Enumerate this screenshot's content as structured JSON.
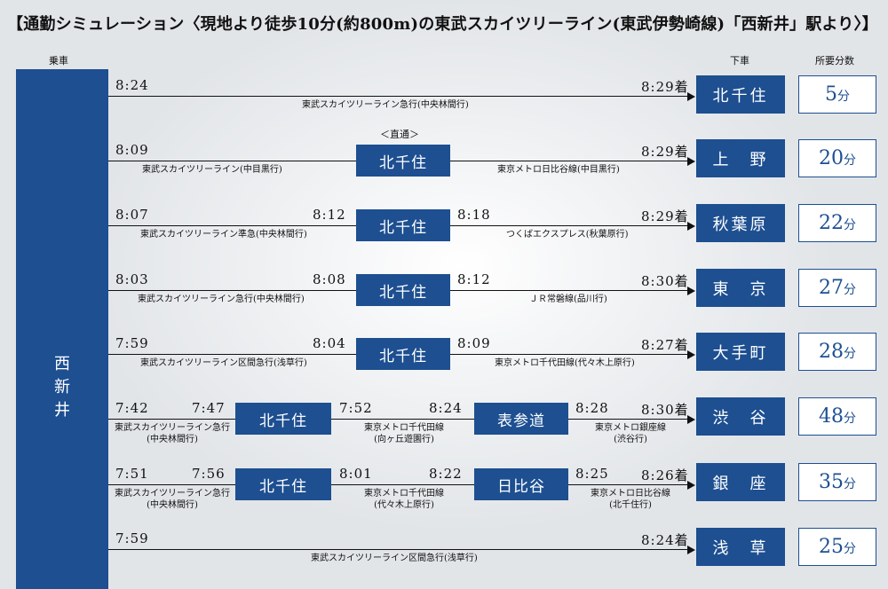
{
  "title": "【通勤シミュレーション〈現地より徒歩10分(約800m)の東武スカイツリーライン(東武伊勢崎線)「西新井」駅より〉】",
  "headers": {
    "boarding": "乗車",
    "alighting": "下車",
    "duration": "所要分数"
  },
  "origin": "西新井",
  "colors": {
    "accent": "#1d4f91",
    "background": "#e8eaed"
  },
  "direct_label": "＜直通＞",
  "routes": [
    {
      "depart": "8:24",
      "arrive": "8:29着",
      "note1": "東武スカイツリーライン急行(中央林間行)",
      "dest": "北千住",
      "minutes": "5",
      "unit": "分"
    },
    {
      "depart": "8:09",
      "arrive": "8:29着",
      "transfer1": "北千住",
      "note1": "東武スカイツリーライン(中目黒行)",
      "note2": "東京メトロ日比谷線(中目黒行)",
      "dest": "上　野",
      "minutes": "20",
      "unit": "分"
    },
    {
      "depart": "8:07",
      "t1_arr": "8:12",
      "t1_dep": "8:18",
      "arrive": "8:29着",
      "transfer1": "北千住",
      "note1": "東武スカイツリーライン準急(中央林間行)",
      "note2": "つくばエクスプレス(秋葉原行)",
      "dest": "秋葉原",
      "minutes": "22",
      "unit": "分"
    },
    {
      "depart": "8:03",
      "t1_arr": "8:08",
      "t1_dep": "8:12",
      "arrive": "8:30着",
      "transfer1": "北千住",
      "note1": "東武スカイツリーライン急行(中央林間行)",
      "note2": "ＪＲ常磐線(品川行)",
      "dest": "東　京",
      "minutes": "27",
      "unit": "分"
    },
    {
      "depart": "7:59",
      "t1_arr": "8:04",
      "t1_dep": "8:09",
      "arrive": "8:27着",
      "transfer1": "北千住",
      "note1": "東武スカイツリーライン区間急行(浅草行)",
      "note2": "東京メトロ千代田線(代々木上原行)",
      "dest": "大手町",
      "minutes": "28",
      "unit": "分"
    },
    {
      "depart": "7:42",
      "t1_arr": "7:47",
      "t1_dep": "7:52",
      "t2_arr": "8:24",
      "t2_dep": "8:28",
      "arrive": "8:30着",
      "transfer1": "北千住",
      "transfer2": "表参道",
      "note1a": "東武スカイツリーライン急行",
      "note1b": "(中央林間行)",
      "note2a": "東京メトロ千代田線",
      "note2b": "(向ヶ丘遊園行)",
      "note3a": "東京メトロ銀座線",
      "note3b": "(渋谷行)",
      "dest": "渋　谷",
      "minutes": "48",
      "unit": "分"
    },
    {
      "depart": "7:51",
      "t1_arr": "7:56",
      "t1_dep": "8:01",
      "t2_arr": "8:22",
      "t2_dep": "8:25",
      "arrive": "8:26着",
      "transfer1": "北千住",
      "transfer2": "日比谷",
      "note1a": "東武スカイツリーライン急行",
      "note1b": "(中央林間行)",
      "note2a": "東京メトロ千代田線",
      "note2b": "(代々木上原行)",
      "note3a": "東京メトロ日比谷線",
      "note3b": "(北千住行)",
      "dest": "銀　座",
      "minutes": "35",
      "unit": "分"
    },
    {
      "depart": "7:59",
      "arrive": "8:24着",
      "note1": "東武スカイツリーライン区間急行(浅草行)",
      "dest": "浅　草",
      "minutes": "25",
      "unit": "分"
    }
  ]
}
